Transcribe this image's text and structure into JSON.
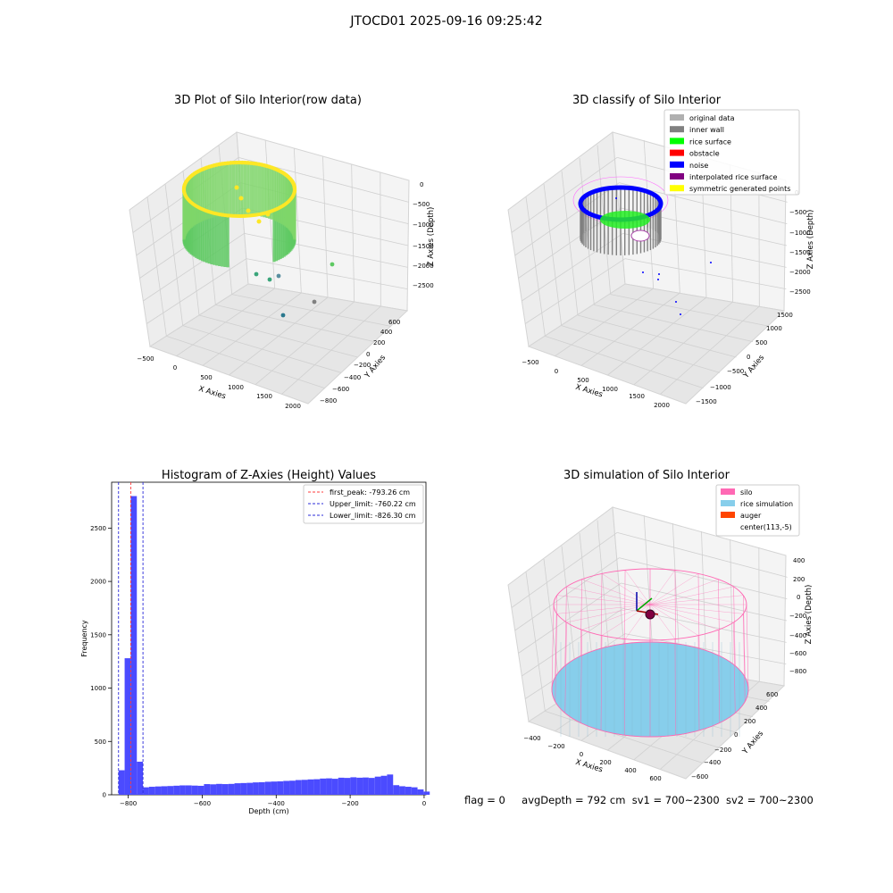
{
  "suptitle": "JTOCD01 2025-09-16 09:25:42",
  "footer": {
    "flag": "flag = 0",
    "avg_depth": "avgDepth = 792 cm",
    "sv1": "sv1 = 700~2300",
    "sv2": "sv2 = 700~2300"
  },
  "colors": {
    "pane": "#f2f2f2",
    "grid": "#dcdcdc",
    "viridis_low": "#2a788e",
    "viridis_mid": "#5ec962",
    "viridis_high": "#fde725",
    "hist_bar": "#4b4bff",
    "peak_line": "#ff3b3b",
    "limit_line": "#2b2bd9",
    "silo": "#ff69b4",
    "rice_sim": "#87ceeb",
    "auger": "#ff4500"
  },
  "chart_data": [
    {
      "type": "scatter3d",
      "title": "3D Plot of Silo Interior(row data)",
      "xlabel": "X Axies",
      "ylabel": "Y Axies",
      "zlabel": "Z Axies (Depth)",
      "xticks": [
        "−500",
        "0",
        "500",
        "1000",
        "1500",
        "2000"
      ],
      "yticks": [
        "−800",
        "−600",
        "−400",
        "−200",
        "0",
        "200",
        "400",
        "600"
      ],
      "zticks": [
        "−2500",
        "−2000",
        "−1500",
        "−1000",
        "−500",
        "0"
      ],
      "colormap": "viridis",
      "outliers": [
        {
          "x": 1400,
          "y": 200,
          "z": -1800
        },
        {
          "x": 900,
          "y": -200,
          "z": -2200
        },
        {
          "x": 600,
          "y": -100,
          "z": -2400
        },
        {
          "x": 400,
          "y": 100,
          "z": -2300
        }
      ]
    },
    {
      "type": "scatter3d",
      "title": "3D classify of Silo Interior",
      "xlabel": "X Axies",
      "ylabel": "Y Axies",
      "zlabel": "Z Axies (Depth)",
      "xticks": [
        "−500",
        "0",
        "500",
        "1000",
        "1500",
        "2000"
      ],
      "yticks": [
        "−1500",
        "−1000",
        "−500",
        "0",
        "500",
        "1000",
        "1500"
      ],
      "zticks": [
        "−2500",
        "−2000",
        "−1500",
        "−1000",
        "−500",
        "0"
      ],
      "legend": [
        {
          "label": "original data",
          "color": "#b0b0b0"
        },
        {
          "label": "inner wall",
          "color": "#808080"
        },
        {
          "label": "rice surface",
          "color": "#00ff00"
        },
        {
          "label": "obstacle",
          "color": "#ff0000"
        },
        {
          "label": "noise",
          "color": "#0000ff"
        },
        {
          "label": "interpolated rice surface",
          "color": "#800080"
        },
        {
          "label": "symmetric generated points",
          "color": "#ffff00"
        }
      ],
      "legend_position": "top-right"
    },
    {
      "type": "bar",
      "title": "Histogram of Z-Axies (Height) Values",
      "xlabel": "Depth (cm)",
      "ylabel": "Frequency",
      "xlim": [
        -845,
        5
      ],
      "ylim": [
        0,
        2930
      ],
      "xticks": [
        -800,
        -600,
        -400,
        -200,
        0
      ],
      "xtick_labels": [
        "−800",
        "−600",
        "−400",
        "−200",
        "0"
      ],
      "yticks": [
        0,
        500,
        1000,
        1500,
        2000,
        2500
      ],
      "bin_start": -826.3,
      "bin_width": 16.5,
      "values": [
        230,
        1280,
        2800,
        310,
        70,
        75,
        78,
        80,
        82,
        85,
        88,
        88,
        86,
        84,
        100,
        98,
        102,
        100,
        102,
        108,
        110,
        112,
        116,
        118,
        122,
        124,
        126,
        130,
        132,
        138,
        140,
        144,
        146,
        152,
        154,
        150,
        160,
        158,
        164,
        160,
        162,
        158,
        170,
        178,
        190,
        90,
        80,
        75,
        70,
        50,
        30,
        0
      ],
      "vlines": [
        {
          "label": "first_peak: -793.26 cm",
          "x": -793.26,
          "color": "#ff3b3b"
        },
        {
          "label": "Upper_limit: -760.22 cm",
          "x": -760.22,
          "color": "#2b2bd9"
        },
        {
          "label": "Lower_limit: -826.30 cm",
          "x": -826.3,
          "color": "#2b2bd9"
        }
      ],
      "legend_position": "top-right"
    },
    {
      "type": "surface3d",
      "title": "3D simulation of Silo Interior",
      "xlabel": "X Axies",
      "ylabel": "Y Axies",
      "zlabel": "Z Axies (Depth)",
      "xticks": [
        "−400",
        "−200",
        "0",
        "200",
        "400",
        "600"
      ],
      "yticks": [
        "−600",
        "−400",
        "−200",
        "0",
        "200",
        "400",
        "600"
      ],
      "zticks": [
        "−800",
        "−600",
        "−400",
        "−200",
        "0",
        "200",
        "400"
      ],
      "legend": [
        {
          "label": "silo",
          "color": "#ff69b4"
        },
        {
          "label": "rice simulation",
          "color": "#87ceeb"
        },
        {
          "label": "auger",
          "color": "#ff4500"
        },
        {
          "label": "center(113,-5)",
          "color": "#ffffff"
        }
      ],
      "legend_position": "top-right"
    }
  ]
}
